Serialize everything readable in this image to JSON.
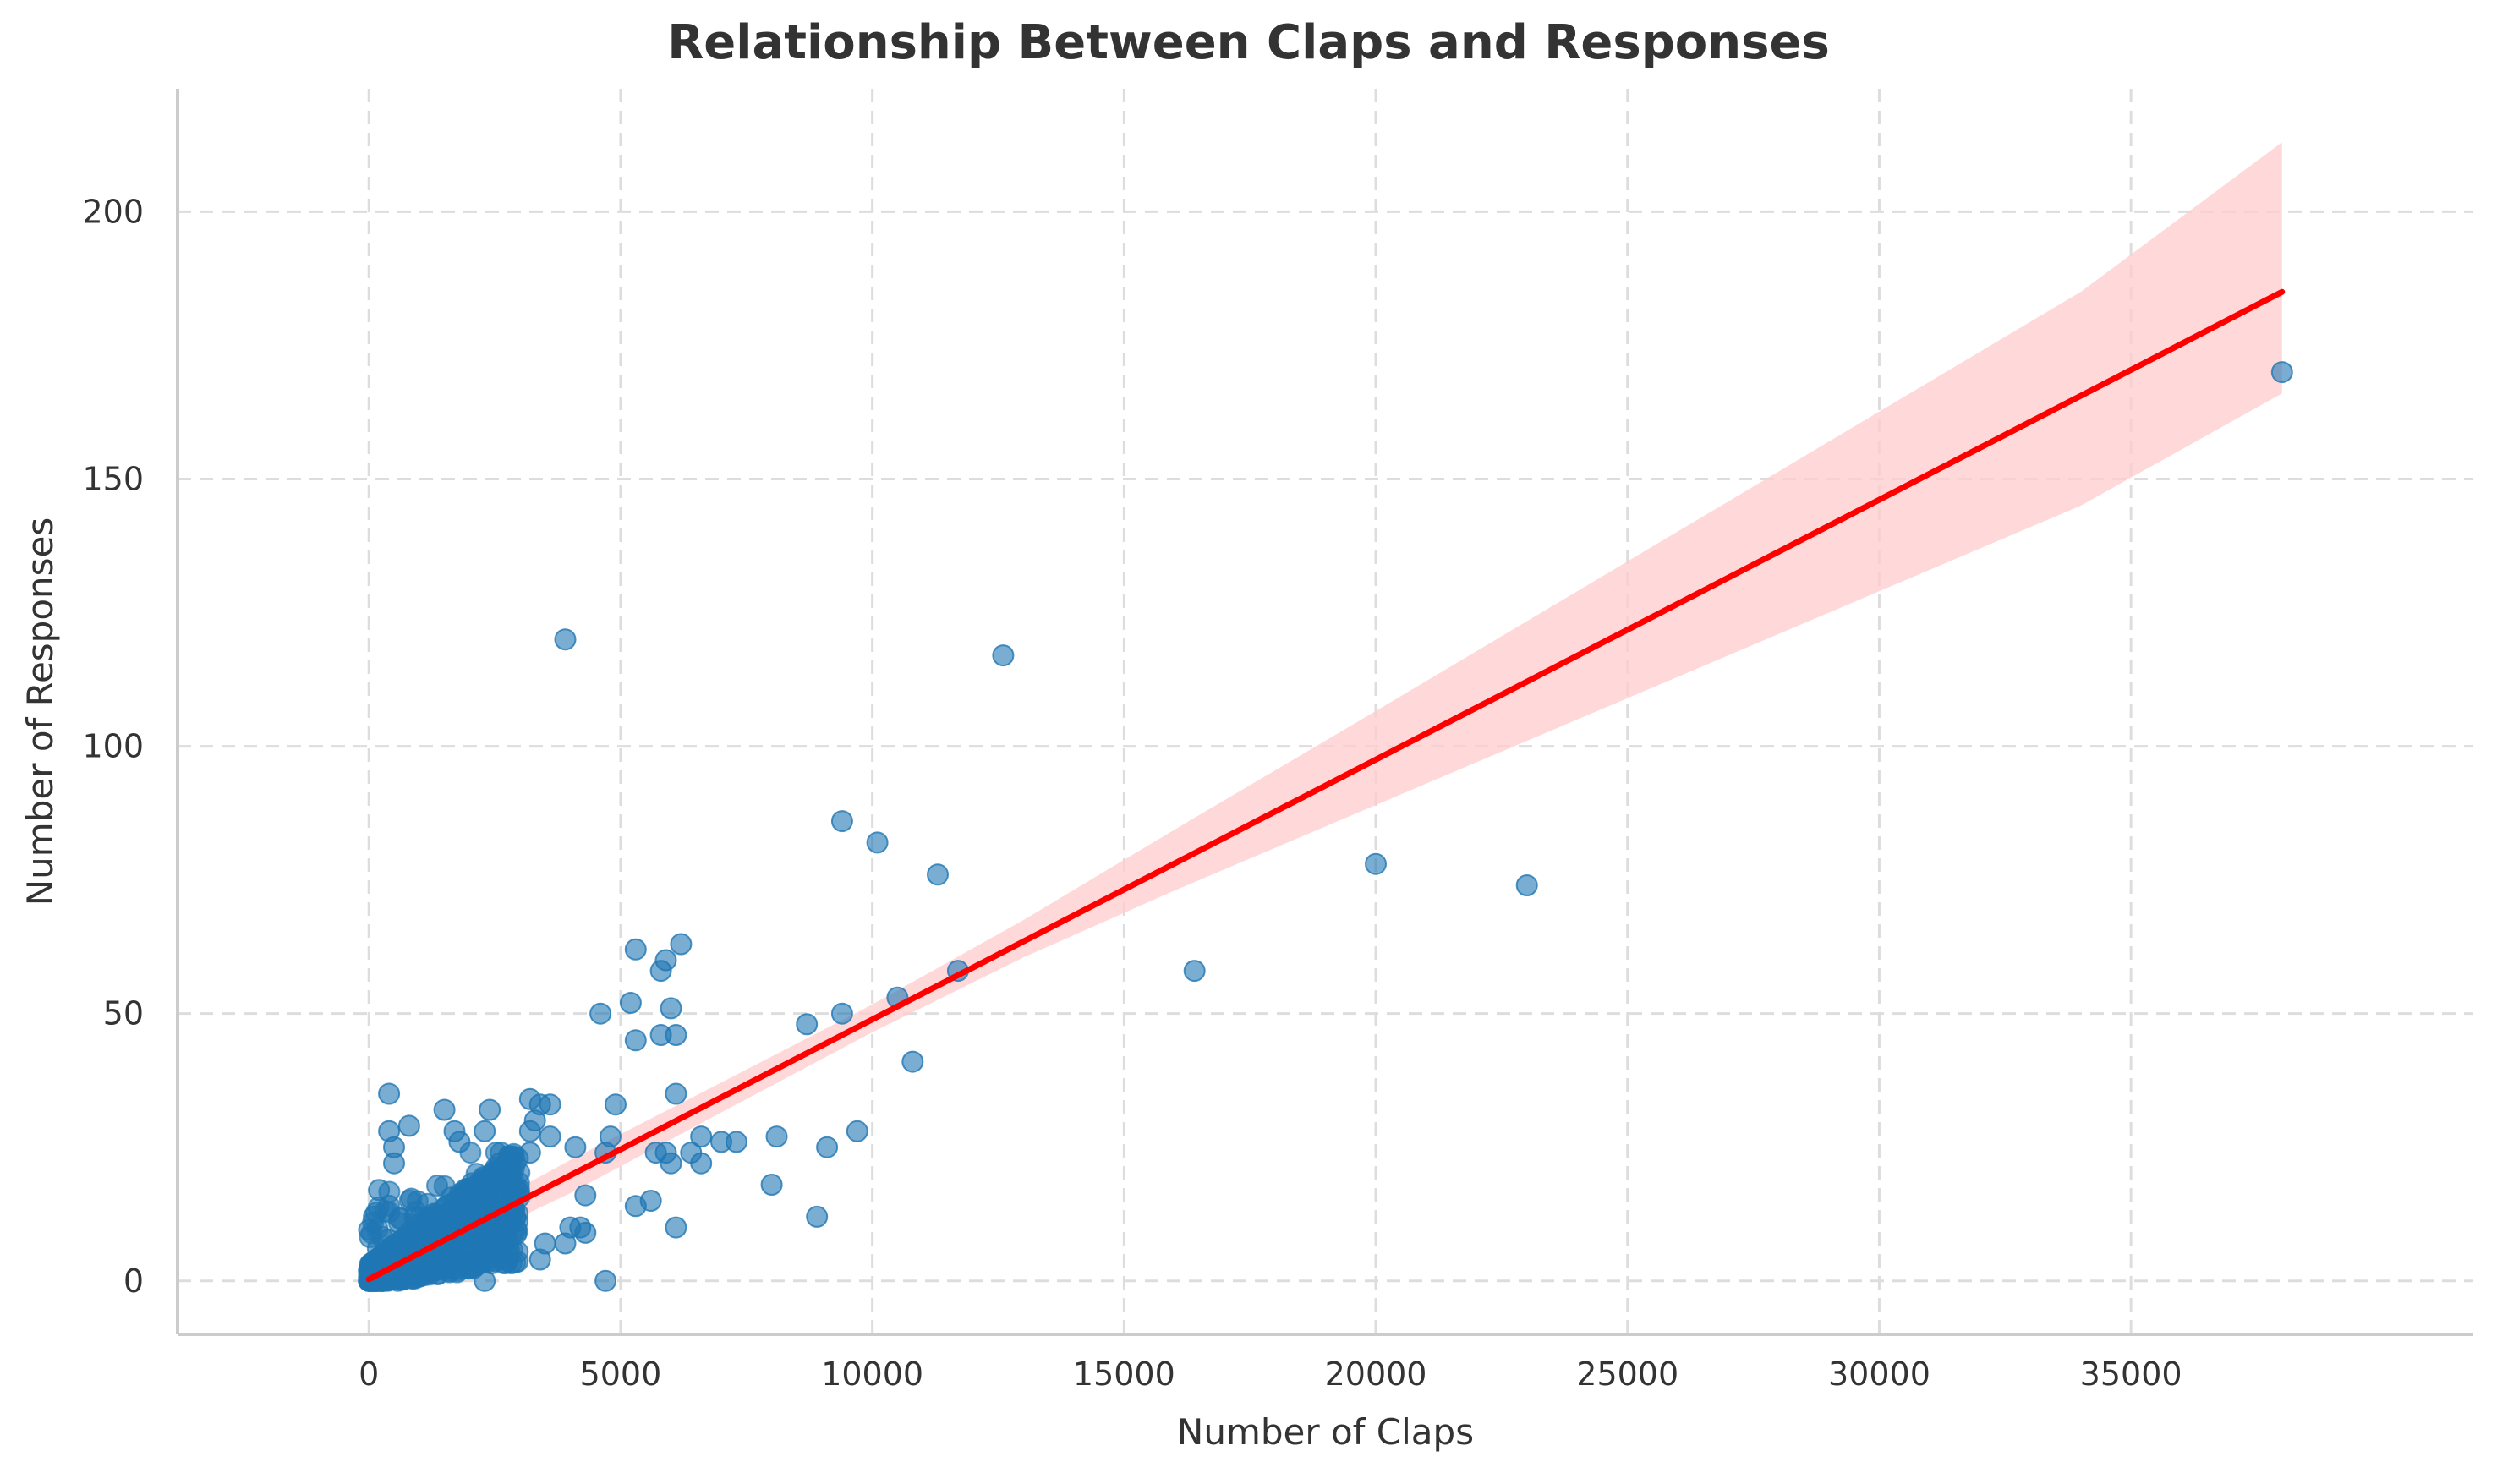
{
  "chart_data": {
    "type": "scatter",
    "title": "Relationship Between Claps and Responses",
    "xlabel": "Number of Claps",
    "ylabel": "Number of Responses",
    "xlim": [
      -3800,
      41800
    ],
    "ylim": [
      -10,
      223
    ],
    "xticks": [
      0,
      5000,
      10000,
      15000,
      20000,
      25000,
      30000,
      35000
    ],
    "yticks": [
      0,
      50,
      100,
      150,
      200
    ],
    "grid": true,
    "colors": {
      "points": "#1f77b4",
      "fit_line": "#ff0000",
      "confidence_band": "#ffcccc"
    },
    "series": [
      {
        "points": [
          [
            3900,
            120
          ],
          [
            12600,
            117
          ],
          [
            9400,
            86
          ],
          [
            10100,
            82
          ],
          [
            11300,
            76
          ],
          [
            20000,
            78
          ],
          [
            23000,
            74
          ],
          [
            38000,
            170
          ],
          [
            16400,
            58
          ],
          [
            11700,
            58
          ],
          [
            10500,
            53
          ],
          [
            9400,
            50
          ],
          [
            8700,
            48
          ],
          [
            10800,
            41
          ],
          [
            6200,
            63
          ],
          [
            5300,
            62
          ],
          [
            5900,
            60
          ],
          [
            5800,
            58
          ],
          [
            5200,
            52
          ],
          [
            6000,
            51
          ],
          [
            4600,
            50
          ],
          [
            5800,
            46
          ],
          [
            6100,
            46
          ],
          [
            5300,
            45
          ],
          [
            400,
            35
          ],
          [
            6100,
            35
          ],
          [
            3200,
            34
          ],
          [
            3400,
            33
          ],
          [
            3600,
            33
          ],
          [
            4900,
            33
          ],
          [
            1500,
            32
          ],
          [
            2400,
            32
          ],
          [
            3300,
            30
          ],
          [
            800,
            29
          ],
          [
            400,
            28
          ],
          [
            1700,
            28
          ],
          [
            2300,
            28
          ],
          [
            3200,
            28
          ],
          [
            9700,
            28
          ],
          [
            4800,
            27
          ],
          [
            3600,
            27
          ],
          [
            6600,
            27
          ],
          [
            8100,
            27
          ],
          [
            1800,
            26
          ],
          [
            7000,
            26
          ],
          [
            7300,
            26
          ],
          [
            500,
            25
          ],
          [
            4100,
            25
          ],
          [
            9100,
            25
          ],
          [
            5700,
            24
          ],
          [
            5900,
            24
          ],
          [
            6400,
            24
          ],
          [
            4700,
            24
          ],
          [
            3200,
            24
          ],
          [
            500,
            22
          ],
          [
            2600,
            22
          ],
          [
            6000,
            22
          ],
          [
            6600,
            22
          ],
          [
            200,
            17
          ],
          [
            100,
            12
          ],
          [
            8900,
            12
          ],
          [
            5600,
            15
          ],
          [
            5300,
            14
          ],
          [
            4300,
            16
          ],
          [
            8000,
            18
          ],
          [
            6100,
            10
          ],
          [
            4200,
            10
          ],
          [
            4000,
            10
          ],
          [
            4300,
            9
          ],
          [
            3500,
            7
          ],
          [
            3900,
            7
          ],
          [
            3400,
            4
          ],
          [
            4700,
            0
          ],
          [
            2300,
            0
          ]
        ]
      }
    ],
    "regression": {
      "x_start": 0,
      "x_end": 38000,
      "y_start": 0.3,
      "y_end": 185
    },
    "confidence_band": [
      [
        0,
        -1.5,
        2.1
      ],
      [
        4000,
        16.4,
        22.6
      ],
      [
        7000,
        31.5,
        37.1
      ],
      [
        10000,
        46.5,
        51.7
      ],
      [
        13000,
        60.5,
        67.5
      ],
      [
        16000,
        73.0,
        84.4
      ],
      [
        20000,
        89.0,
        106.6
      ],
      [
        25000,
        109.0,
        134.6
      ],
      [
        30000,
        129.0,
        162.6
      ],
      [
        34000,
        145.0,
        185.0
      ],
      [
        38000,
        166.0,
        213.0
      ]
    ]
  }
}
